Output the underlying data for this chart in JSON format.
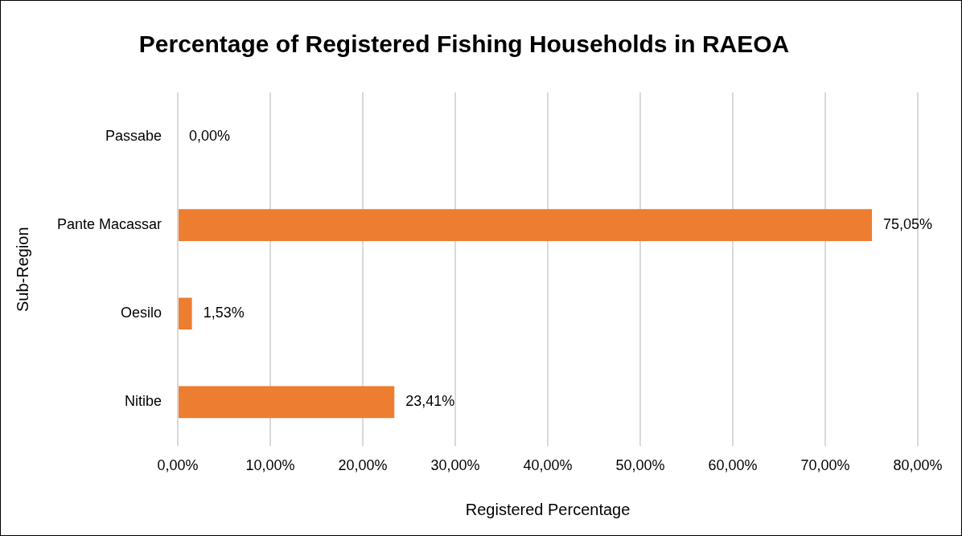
{
  "chart_data": {
    "type": "bar",
    "orientation": "horizontal",
    "title": "Percentage of Registered Fishing Households in RAEOA",
    "xlabel": "Registered Percentage",
    "ylabel": "Sub-Region",
    "categories": [
      "Passabe",
      "Pante Macassar",
      "Oesilo",
      "Nitibe"
    ],
    "values": [
      0,
      75.05,
      1.53,
      23.41
    ],
    "value_labels": [
      "0,00%",
      "75,05%",
      "1,53%",
      "23,41%"
    ],
    "color": "#ed7d31",
    "xlim": [
      0,
      80
    ],
    "xticks": [
      {
        "value": 0,
        "label": "0,00%"
      },
      {
        "value": 10,
        "label": "10,00%"
      },
      {
        "value": 20,
        "label": "20,00%"
      },
      {
        "value": 30,
        "label": "30,00%"
      },
      {
        "value": 40,
        "label": "40,00%"
      },
      {
        "value": 50,
        "label": "50,00%"
      },
      {
        "value": 60,
        "label": "60,00%"
      },
      {
        "value": 70,
        "label": "70,00%"
      },
      {
        "value": 80,
        "label": "80,00%"
      }
    ],
    "grid": "x",
    "legend": false
  }
}
